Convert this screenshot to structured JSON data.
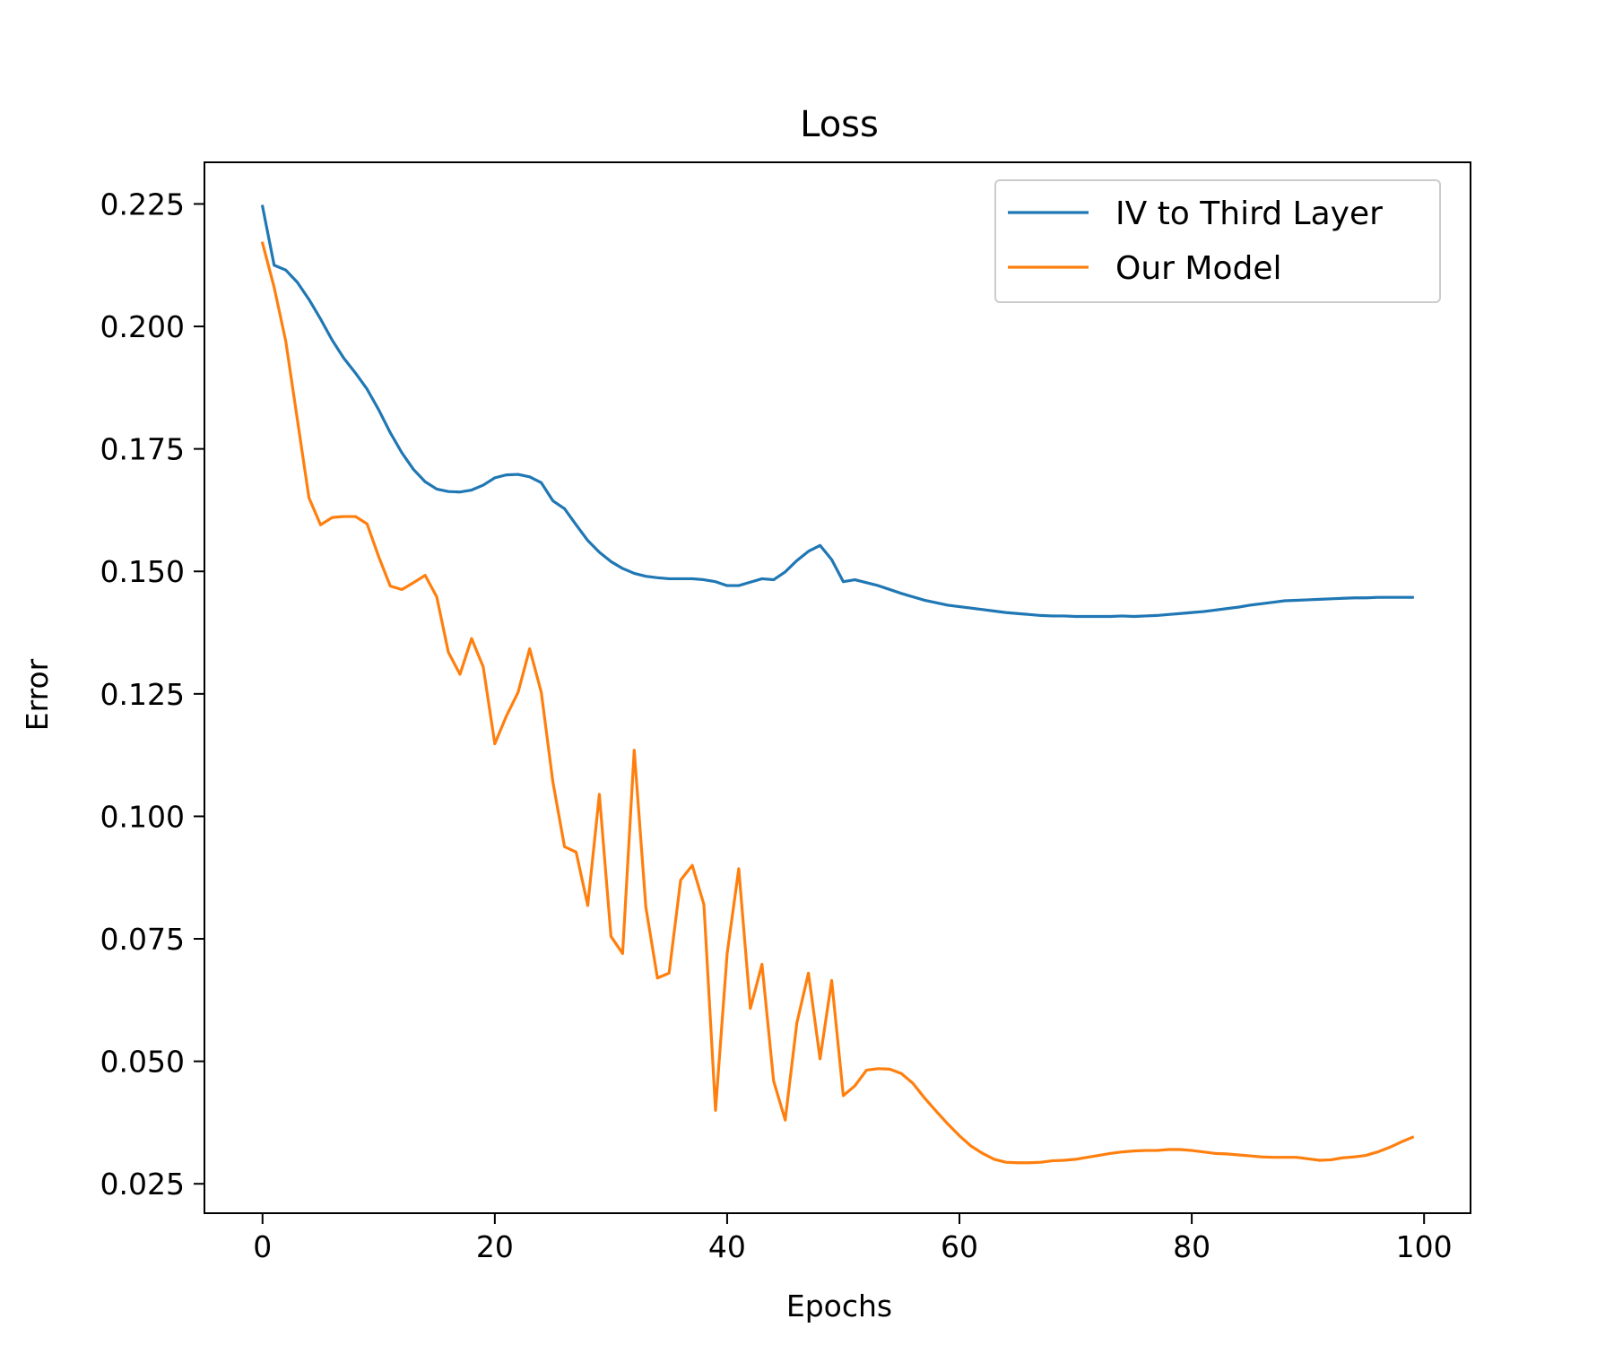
{
  "chart_data": {
    "type": "line",
    "title": "Loss",
    "xlabel": "Epochs",
    "ylabel": "Error",
    "xlim": [
      -5,
      104
    ],
    "ylim": [
      0.019,
      0.2335
    ],
    "xticks": [
      0,
      20,
      40,
      60,
      80,
      100
    ],
    "yticks": [
      0.025,
      0.05,
      0.075,
      0.1,
      0.125,
      0.15,
      0.175,
      0.2,
      0.225
    ],
    "ytick_labels": [
      "0.025",
      "0.050",
      "0.075",
      "0.100",
      "0.125",
      "0.150",
      "0.175",
      "0.200",
      "0.225"
    ],
    "grid": false,
    "legend_position": "top-right",
    "x": [
      0,
      1,
      2,
      3,
      4,
      5,
      6,
      7,
      8,
      9,
      10,
      11,
      12,
      13,
      14,
      15,
      16,
      17,
      18,
      19,
      20,
      21,
      22,
      23,
      24,
      25,
      26,
      27,
      28,
      29,
      30,
      31,
      32,
      33,
      34,
      35,
      36,
      37,
      38,
      39,
      40,
      41,
      42,
      43,
      44,
      45,
      46,
      47,
      48,
      49,
      50,
      51,
      52,
      53,
      54,
      55,
      56,
      57,
      58,
      59,
      60,
      61,
      62,
      63,
      64,
      65,
      66,
      67,
      68,
      69,
      70,
      71,
      72,
      73,
      74,
      75,
      76,
      77,
      78,
      79,
      80,
      81,
      82,
      83,
      84,
      85,
      86,
      87,
      88,
      89,
      90,
      91,
      92,
      93,
      94,
      95,
      96,
      97,
      98,
      99
    ],
    "series": [
      {
        "name": "IV to Third Layer",
        "color": "#1f77b4",
        "values": [
          0.2245,
          0.2125,
          0.2115,
          0.209,
          0.2055,
          0.2015,
          0.1972,
          0.1935,
          0.1905,
          0.1872,
          0.183,
          0.1783,
          0.1742,
          0.1708,
          0.1683,
          0.1668,
          0.1663,
          0.1662,
          0.1666,
          0.1676,
          0.1691,
          0.1697,
          0.1698,
          0.1693,
          0.1681,
          0.1644,
          0.1628,
          0.1595,
          0.1563,
          0.1539,
          0.152,
          0.1506,
          0.1496,
          0.149,
          0.1487,
          0.1485,
          0.1485,
          0.1485,
          0.1483,
          0.1479,
          0.1471,
          0.1471,
          0.1478,
          0.1485,
          0.1483,
          0.1499,
          0.1522,
          0.1541,
          0.1553,
          0.1524,
          0.1479,
          0.1483,
          0.1477,
          0.1471,
          0.1463,
          0.1455,
          0.1448,
          0.1441,
          0.1436,
          0.1431,
          0.1428,
          0.1425,
          0.1422,
          0.1419,
          0.1416,
          0.1414,
          0.1412,
          0.141,
          0.1409,
          0.1409,
          0.1408,
          0.1408,
          0.1408,
          0.1408,
          0.1409,
          0.1408,
          0.1409,
          0.141,
          0.1412,
          0.1414,
          0.1416,
          0.1418,
          0.1421,
          0.1424,
          0.1427,
          0.1431,
          0.1434,
          0.1437,
          0.144,
          0.1441,
          0.1442,
          0.1443,
          0.1444,
          0.1445,
          0.1446,
          0.1446,
          0.1447,
          0.1447,
          0.1447,
          0.1447
        ]
      },
      {
        "name": "Our Model",
        "color": "#ff7f0e",
        "values": [
          0.217,
          0.208,
          0.197,
          0.181,
          0.165,
          0.1595,
          0.161,
          0.1612,
          0.1612,
          0.1597,
          0.153,
          0.147,
          0.1463,
          0.1477,
          0.1492,
          0.1448,
          0.1335,
          0.129,
          0.1363,
          0.1305,
          0.1148,
          0.1205,
          0.1253,
          0.1342,
          0.1253,
          0.107,
          0.0938,
          0.0927,
          0.0818,
          0.1045,
          0.0755,
          0.072,
          0.1135,
          0.0815,
          0.067,
          0.068,
          0.087,
          0.09,
          0.082,
          0.04,
          0.072,
          0.0893,
          0.0608,
          0.0698,
          0.046,
          0.038,
          0.0578,
          0.068,
          0.0505,
          0.0665,
          0.043,
          0.045,
          0.0482,
          0.0485,
          0.0484,
          0.0475,
          0.0455,
          0.0425,
          0.0398,
          0.0372,
          0.0348,
          0.0327,
          0.0312,
          0.03,
          0.0294,
          0.0293,
          0.0293,
          0.0294,
          0.0297,
          0.0298,
          0.03,
          0.0304,
          0.0308,
          0.0312,
          0.0315,
          0.0317,
          0.0318,
          0.0318,
          0.032,
          0.032,
          0.0318,
          0.0315,
          0.0312,
          0.0311,
          0.0309,
          0.0307,
          0.0305,
          0.0304,
          0.0304,
          0.0304,
          0.0301,
          0.0298,
          0.0299,
          0.0303,
          0.0305,
          0.0308,
          0.0315,
          0.0324,
          0.0335,
          0.0345
        ]
      }
    ]
  }
}
